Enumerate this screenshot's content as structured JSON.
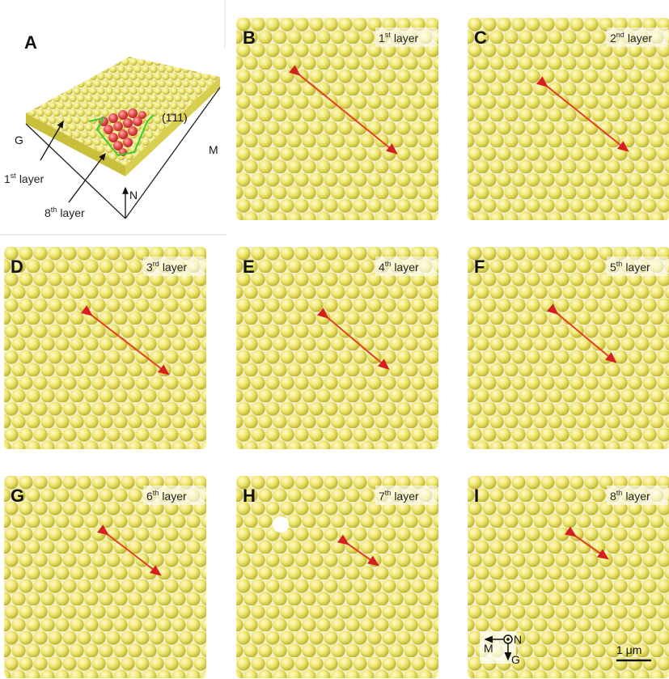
{
  "panels": [
    {
      "letter": "A"
    },
    {
      "letter": "B",
      "layer": {
        "num": "1",
        "sup": "st",
        "word": "layer"
      }
    },
    {
      "letter": "C",
      "layer": {
        "num": "2",
        "sup": "nd",
        "word": "layer"
      }
    },
    {
      "letter": "D",
      "layer": {
        "num": "3",
        "sup": "rd",
        "word": "layer"
      }
    },
    {
      "letter": "E",
      "layer": {
        "num": "4",
        "sup": "th",
        "word": "layer"
      }
    },
    {
      "letter": "F",
      "layer": {
        "num": "5",
        "sup": "th",
        "word": "layer"
      }
    },
    {
      "letter": "G",
      "layer": {
        "num": "6",
        "sup": "th",
        "word": "layer"
      }
    },
    {
      "letter": "H",
      "layer": {
        "num": "7",
        "sup": "th",
        "word": "layer"
      }
    },
    {
      "letter": "I",
      "layer": {
        "num": "8",
        "sup": "th",
        "word": "layer"
      }
    }
  ],
  "panel_a": {
    "miller": "(1̄11)",
    "axis_g": "G",
    "axis_m": "M",
    "axis_n": "N",
    "labels": [
      {
        "num": "1",
        "sup": "st",
        "word": "layer"
      },
      {
        "num": "8",
        "sup": "th",
        "word": "layer"
      }
    ]
  },
  "compass": {
    "m": "M",
    "n": "N",
    "g": "G"
  },
  "scale_bar": "1 μm"
}
